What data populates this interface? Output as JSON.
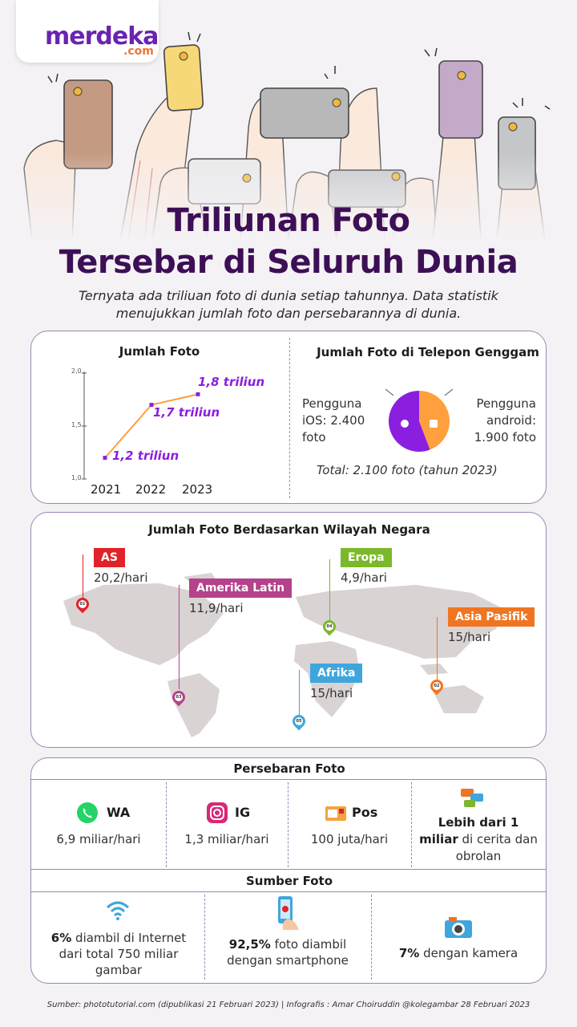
{
  "brand": {
    "logo_main": "merdeka",
    "logo_sub": ".com"
  },
  "title": {
    "line1": "Triliunan Foto",
    "line2": "Tersebar di Seluruh Dunia"
  },
  "subtitle": "Ternyata ada triliuan foto di dunia setiap tahunnya. Data statistik menujukkan jumlah foto dan persebarannya di dunia.",
  "jumlah_foto": {
    "heading": "Jumlah Foto",
    "y_ticks": [
      "2,0",
      "1,5",
      "1,0"
    ],
    "labels": [
      "1,2 triliun",
      "1,7 triliun",
      "1,8 triliun"
    ]
  },
  "telepon": {
    "heading": "Jumlah Foto di Telepon Genggam",
    "ios_label": "Pengguna iOS: 2.400 foto",
    "android_label": "Pengguna android: 1.900 foto",
    "total": "Total: 2.100 foto (tahun 2023)"
  },
  "chart_data": [
    {
      "type": "line",
      "title": "Jumlah Foto",
      "x": [
        "2021",
        "2022",
        "2023"
      ],
      "series": [
        {
          "values": [
            1.2,
            1.7,
            1.8
          ]
        }
      ],
      "ylim": [
        1.0,
        2.0
      ],
      "y_ticks": [
        1.0,
        1.5,
        2.0
      ],
      "data_labels": [
        "1,2 triliun",
        "1,7 triliun",
        "1,8 triliun"
      ],
      "grid": false
    },
    {
      "type": "pie",
      "title": "Jumlah Foto di Telepon Genggam",
      "categories": [
        "Pengguna iOS",
        "Pengguna android"
      ],
      "values": [
        2400,
        1900
      ],
      "colors": [
        "#8b1fe0",
        "#ff9f3e"
      ]
    }
  ],
  "wilayah": {
    "heading": "Jumlah Foto Berdasarkan Wilayah Negara",
    "regions": [
      {
        "name": "AS",
        "value": "20,2/hari",
        "pin": "01",
        "color": "#e02328"
      },
      {
        "name": "Amerika Latin",
        "value": "11,9/hari",
        "pin": "03",
        "color": "#b5428b"
      },
      {
        "name": "Eropa",
        "value": "4,9/hari",
        "pin": "04",
        "color": "#7bb82b"
      },
      {
        "name": "Asia Pasifik",
        "value": "15/hari",
        "pin": "02",
        "color": "#f07521"
      },
      {
        "name": "Afrika",
        "value": "15/hari",
        "pin": "05",
        "color": "#3fa6dd"
      }
    ]
  },
  "persebaran": {
    "heading": "Persebaran Foto",
    "items": [
      {
        "icon": "whatsapp-icon",
        "name": "WA",
        "value": "6,9 miliar/hari"
      },
      {
        "icon": "instagram-icon",
        "name": "IG",
        "value": "1,3 miliar/hari"
      },
      {
        "icon": "mail-icon",
        "name": "Pos",
        "value": "100 juta/hari"
      }
    ],
    "chat_bold": "Lebih dari 1 miliar",
    "chat_rest": "di cerita dan obrolan"
  },
  "sumber": {
    "heading": "Sumber Foto",
    "internet_bold": "6%",
    "internet_rest": "diambil di Internet dari total 750 miliar gambar",
    "smartphone_bold": "92,5%",
    "smartphone_rest": "foto diambil dengan smartphone",
    "kamera_bold": "7%",
    "kamera_rest": "dengan kamera"
  },
  "footer": "Sumber: phototutorial.com (dipublikasi 21 Februari 2023)  |  Infografis : Amar Choiruddin @kolegambar 28 Februari 2023",
  "colors": {
    "accent": "#8b1fe0",
    "title": "#3d0f55",
    "border": "#9b86b3",
    "line": "#ff9f3e"
  }
}
